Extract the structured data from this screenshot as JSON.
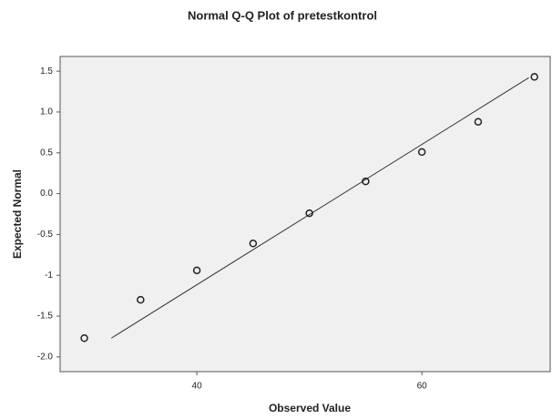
{
  "chart_data": {
    "type": "scatter",
    "title": "Normal Q-Q Plot of pretestkontrol",
    "x_label": "Observed Value",
    "y_label": "Expected Normal",
    "x": [
      30,
      35,
      40,
      45,
      50,
      55,
      60,
      65,
      70
    ],
    "series": [
      {
        "color": "#222222",
        "values": [
          -1.77,
          -1.3,
          -0.94,
          -0.61,
          -0.24,
          0.15,
          0.51,
          0.88,
          1.43
        ]
      }
    ],
    "reference_line": {
      "color": "#333333",
      "x": [
        32.4,
        69.5
      ],
      "y": [
        -1.77,
        1.42
      ]
    },
    "xlim": [
      27.85,
      71.4
    ],
    "ylim": [
      -2.18,
      1.68
    ],
    "xticks": [
      40,
      60
    ],
    "yticks": [
      1.5,
      {
        "value": 1,
        "label": "1.0"
      },
      0.5,
      {
        "value": 0,
        "label": "0.0"
      },
      -0.5,
      -1,
      -1.5,
      {
        "value": -2,
        "label": "-2.0"
      }
    ],
    "plot_background": "#f0f0f0"
  }
}
